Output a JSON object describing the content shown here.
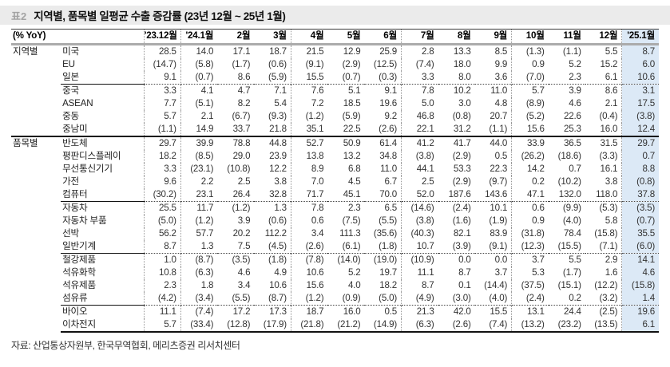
{
  "header": {
    "tag": "표2",
    "title": "지역별, 품목별 일평균 수출 증감률 (23년 12월 ~ 25년 1월)"
  },
  "footer": {
    "source_note": "자료: 산업통상자원부, 한국무역협회, 메리츠증권 리서치센터"
  },
  "colors": {
    "highlight_column_bg": "#dce9f6",
    "title_band_bg": "#ebebeb",
    "tag_color": "#a3a3a3",
    "header_rule_gray": "#ababab"
  },
  "chart_data": {
    "type": "table",
    "title": "지역별, 품목별 일평균 수출 증감률 (23년 12월 ~ 25년 1월)",
    "unit_label": "(% YoY)",
    "note": "negative values shown in parentheses; last column ('25.1월) highlighted",
    "columns": [
      "'23.12월",
      "'24.1월",
      "2월",
      "3월",
      "4월",
      "5월",
      "6월",
      "7월",
      "8월",
      "9월",
      "10월",
      "11월",
      "12월",
      "'25.1월"
    ],
    "dotted_before_col_indices": [
      0,
      1,
      4,
      7,
      10,
      13
    ],
    "highlight_col_index": 13,
    "groups": [
      {
        "label": "지역별",
        "subgroups": [
          {
            "rows": [
              {
                "name": "미국",
                "values": [
                  "28.5",
                  "14.0",
                  "17.1",
                  "18.7",
                  "21.5",
                  "12.9",
                  "25.9",
                  "2.8",
                  "13.3",
                  "8.5",
                  "(1.3)",
                  "(1.1)",
                  "5.5",
                  "8.7"
                ]
              },
              {
                "name": "EU",
                "values": [
                  "(14.7)",
                  "(5.8)",
                  "(1.7)",
                  "(0.6)",
                  "(9.1)",
                  "(2.9)",
                  "(12.5)",
                  "(7.4)",
                  "18.0",
                  "9.9",
                  "0.9",
                  "5.2",
                  "15.2",
                  "6.0"
                ]
              },
              {
                "name": "일본",
                "values": [
                  "9.1",
                  "(0.7)",
                  "8.6",
                  "(5.9)",
                  "15.5",
                  "(0.7)",
                  "(0.3)",
                  "3.3",
                  "8.0",
                  "3.6",
                  "(7.0)",
                  "2.3",
                  "6.1",
                  "10.6"
                ]
              }
            ]
          },
          {
            "rows": [
              {
                "name": "중국",
                "values": [
                  "3.3",
                  "4.1",
                  "4.7",
                  "7.1",
                  "7.6",
                  "5.1",
                  "9.1",
                  "7.8",
                  "10.2",
                  "11.0",
                  "5.7",
                  "3.9",
                  "8.6",
                  "3.1"
                ]
              },
              {
                "name": "ASEAN",
                "values": [
                  "7.7",
                  "(5.1)",
                  "8.2",
                  "5.4",
                  "7.2",
                  "18.5",
                  "19.6",
                  "5.0",
                  "3.0",
                  "4.8",
                  "(8.9)",
                  "4.6",
                  "2.1",
                  "17.5"
                ]
              },
              {
                "name": "중동",
                "values": [
                  "5.7",
                  "2.1",
                  "(6.7)",
                  "(9.3)",
                  "(1.2)",
                  "(5.9)",
                  "9.2",
                  "46.8",
                  "(0.8)",
                  "20.7",
                  "(5.2)",
                  "22.6",
                  "(0.4)",
                  "(3.8)"
                ]
              },
              {
                "name": "중남미",
                "values": [
                  "(1.1)",
                  "14.9",
                  "33.7",
                  "21.8",
                  "35.1",
                  "22.5",
                  "(2.6)",
                  "22.1",
                  "31.2",
                  "(1.1)",
                  "15.6",
                  "25.3",
                  "16.0",
                  "12.4"
                ]
              }
            ]
          }
        ]
      },
      {
        "label": "품목별",
        "subgroups": [
          {
            "rows": [
              {
                "name": "반도체",
                "values": [
                  "29.7",
                  "39.9",
                  "78.8",
                  "44.8",
                  "52.7",
                  "50.9",
                  "61.4",
                  "41.2",
                  "41.7",
                  "44.0",
                  "33.9",
                  "36.5",
                  "31.5",
                  "29.7"
                ]
              },
              {
                "name": "평판디스플레이",
                "values": [
                  "18.2",
                  "(8.5)",
                  "29.0",
                  "23.9",
                  "13.8",
                  "13.2",
                  "34.8",
                  "(3.8)",
                  "(2.9)",
                  "0.5",
                  "(26.2)",
                  "(18.6)",
                  "(3.3)",
                  "0.7"
                ]
              },
              {
                "name": "무선통신기기",
                "values": [
                  "3.3",
                  "(23.1)",
                  "(10.8)",
                  "12.2",
                  "8.9",
                  "6.8",
                  "11.0",
                  "44.1",
                  "53.3",
                  "22.3",
                  "14.2",
                  "0.7",
                  "16.1",
                  "8.8"
                ]
              },
              {
                "name": "가전",
                "values": [
                  "9.6",
                  "2.2",
                  "2.5",
                  "3.8",
                  "7.0",
                  "4.5",
                  "6.7",
                  "2.5",
                  "(2.9)",
                  "(9.7)",
                  "0.2",
                  "(10.2)",
                  "3.8",
                  "(0.8)"
                ]
              },
              {
                "name": "컴퓨터",
                "values": [
                  "(30.2)",
                  "23.1",
                  "26.4",
                  "32.8",
                  "71.7",
                  "45.1",
                  "70.0",
                  "52.0",
                  "187.6",
                  "143.6",
                  "47.1",
                  "132.0",
                  "118.0",
                  "37.8"
                ]
              }
            ]
          },
          {
            "rows": [
              {
                "name": "자동차",
                "values": [
                  "25.5",
                  "11.7",
                  "(1.2)",
                  "1.3",
                  "7.8",
                  "2.3",
                  "6.5",
                  "(14.6)",
                  "(2.4)",
                  "10.1",
                  "0.6",
                  "(9.9)",
                  "(5.3)",
                  "(3.5)"
                ]
              },
              {
                "name": "자동차 부품",
                "values": [
                  "(5.0)",
                  "(1.2)",
                  "3.9",
                  "(0.6)",
                  "0.6",
                  "(7.5)",
                  "(5.5)",
                  "(3.8)",
                  "(1.6)",
                  "(1.9)",
                  "0.9",
                  "(4.0)",
                  "5.8",
                  "(0.7)"
                ]
              },
              {
                "name": "선박",
                "values": [
                  "56.2",
                  "57.7",
                  "20.2",
                  "112.2",
                  "3.4",
                  "111.3",
                  "(35.6)",
                  "(40.3)",
                  "82.1",
                  "83.9",
                  "(31.8)",
                  "78.4",
                  "(15.8)",
                  "35.5"
                ]
              },
              {
                "name": "일반기계",
                "values": [
                  "8.7",
                  "1.3",
                  "7.5",
                  "(4.5)",
                  "(2.6)",
                  "(6.1)",
                  "(1.8)",
                  "10.7",
                  "(3.9)",
                  "(9.1)",
                  "(12.3)",
                  "(15.5)",
                  "(7.1)",
                  "(6.0)"
                ]
              }
            ]
          },
          {
            "rows": [
              {
                "name": "철강제품",
                "values": [
                  "1.0",
                  "(8.7)",
                  "(3.5)",
                  "(1.8)",
                  "(7.8)",
                  "(14.0)",
                  "(19.0)",
                  "(10.9)",
                  "0.0",
                  "0.0",
                  "3.7",
                  "5.5",
                  "2.9",
                  "14.1"
                ]
              },
              {
                "name": "석유화학",
                "values": [
                  "10.8",
                  "(6.3)",
                  "4.6",
                  "4.9",
                  "10.6",
                  "5.2",
                  "19.7",
                  "11.1",
                  "8.7",
                  "3.7",
                  "5.3",
                  "(1.7)",
                  "1.6",
                  "4.6"
                ]
              },
              {
                "name": "석유제품",
                "values": [
                  "2.3",
                  "1.8",
                  "3.4",
                  "10.6",
                  "15.6",
                  "4.0",
                  "18.2",
                  "8.7",
                  "0.1",
                  "(14.4)",
                  "(37.5)",
                  "(15.1)",
                  "(12.2)",
                  "(15.8)"
                ]
              },
              {
                "name": "섬유류",
                "values": [
                  "(4.2)",
                  "(3.4)",
                  "(5.5)",
                  "(8.7)",
                  "(1.2)",
                  "(0.9)",
                  "(5.0)",
                  "(4.9)",
                  "(3.0)",
                  "(4.0)",
                  "(2.4)",
                  "0.2",
                  "(3.2)",
                  "1.4"
                ]
              }
            ]
          },
          {
            "rows": [
              {
                "name": "바이오",
                "values": [
                  "11.1",
                  "(7.4)",
                  "17.2",
                  "17.3",
                  "18.7",
                  "16.0",
                  "0.5",
                  "21.3",
                  "42.0",
                  "15.5",
                  "13.1",
                  "24.4",
                  "(2.5)",
                  "19.6"
                ]
              },
              {
                "name": "이차전지",
                "values": [
                  "5.7",
                  "(33.4)",
                  "(12.8)",
                  "(17.9)",
                  "(21.8)",
                  "(21.2)",
                  "(14.9)",
                  "(6.3)",
                  "(2.6)",
                  "(7.4)",
                  "(13.2)",
                  "(23.2)",
                  "(13.5)",
                  "6.1"
                ]
              }
            ]
          }
        ]
      }
    ]
  }
}
